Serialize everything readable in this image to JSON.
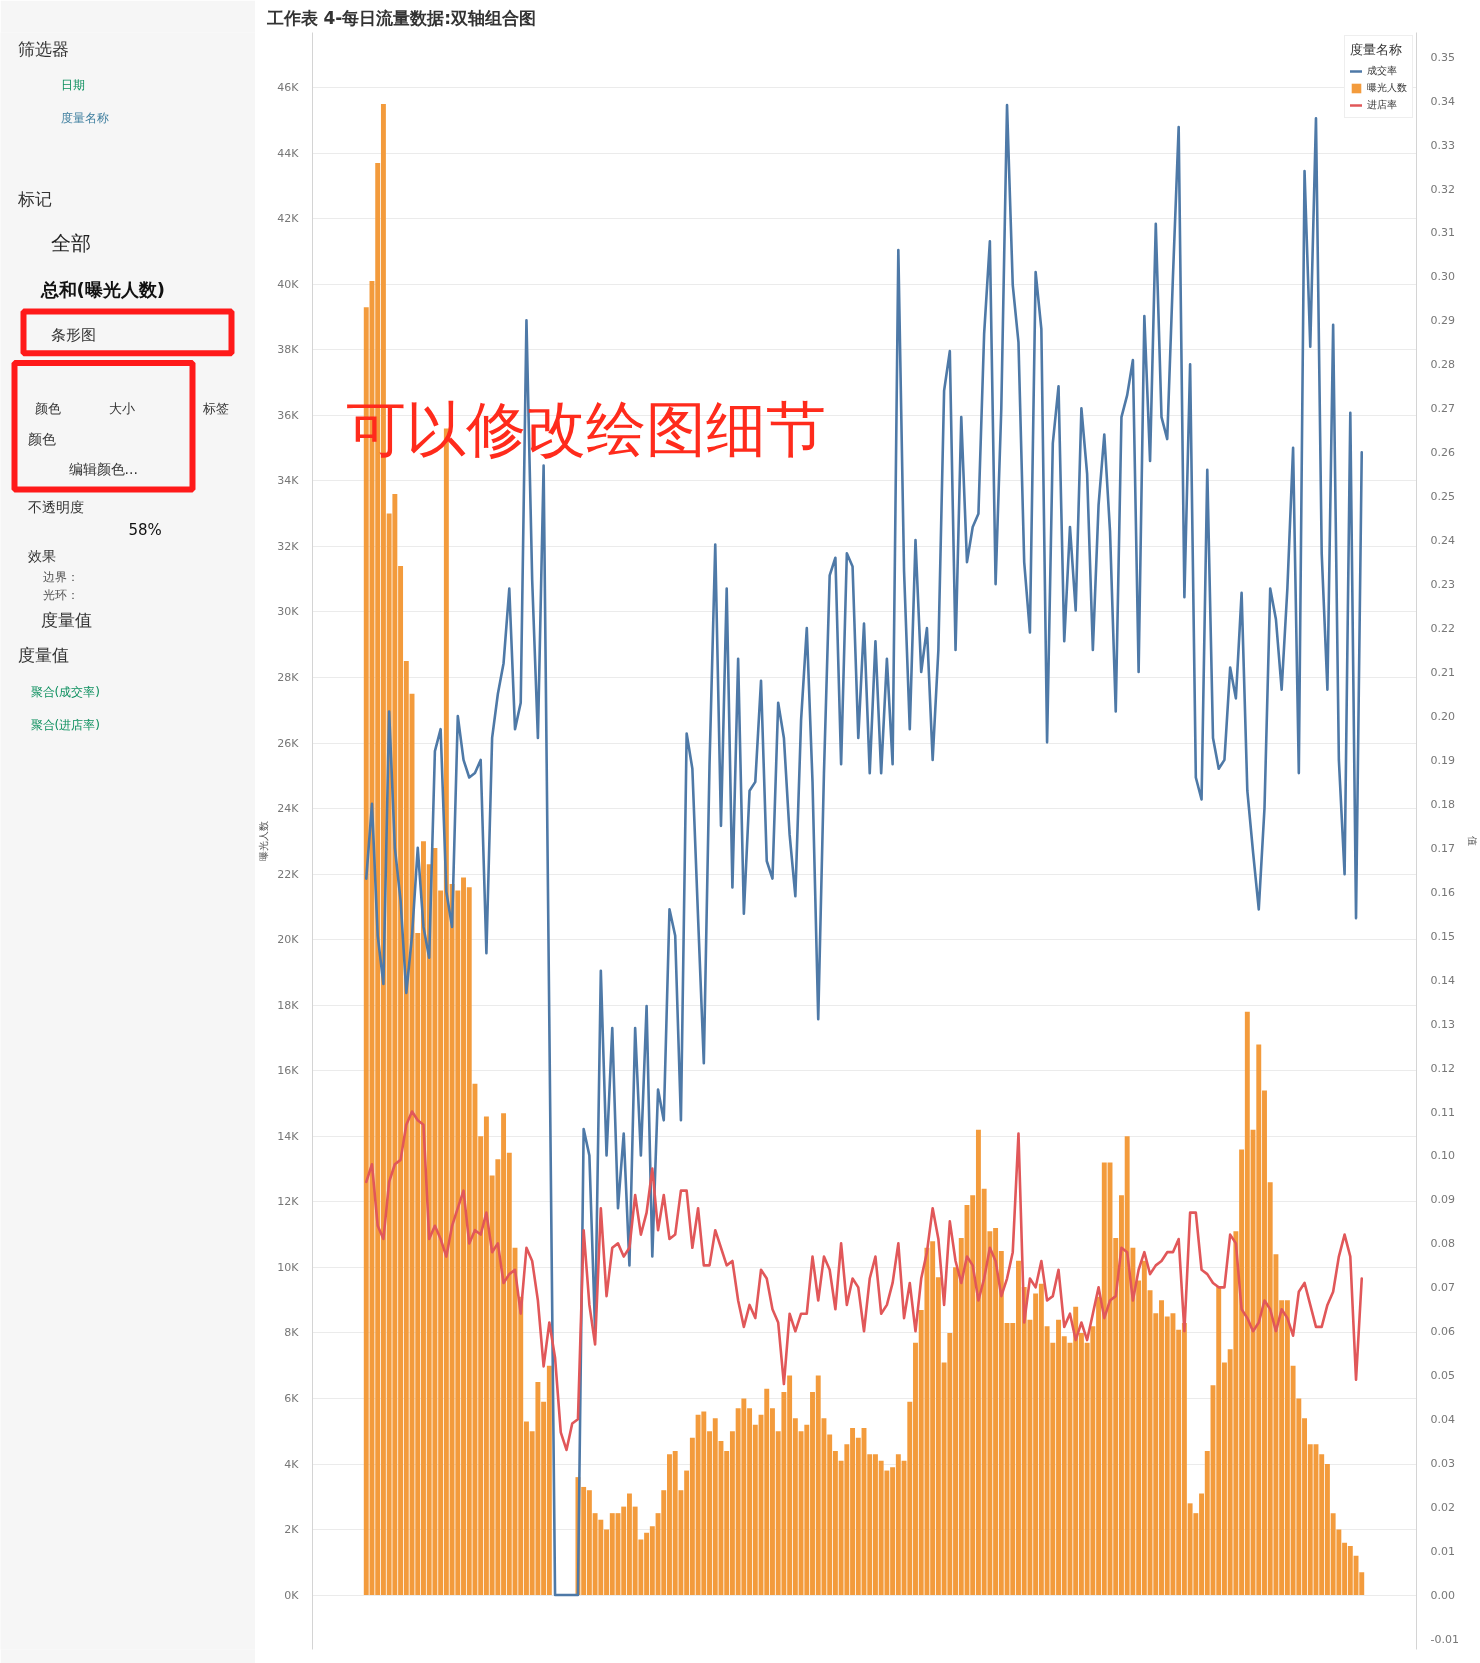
{
  "chart_data": {
    "type": "bar",
    "title": "工作表 4-每日流量数据:双轴组合图",
    "ylabel": "曝光人数",
    "y2label": "值",
    "legend_title": "度量名称",
    "categories": [
      null,
      null,
      null,
      null,
      null,
      null,
      null,
      null,
      null,
      null,
      null,
      null,
      null,
      null,
      null,
      null,
      null,
      null,
      null,
      null,
      null,
      null,
      null,
      null,
      null,
      null,
      null,
      null,
      null,
      null,
      null,
      null,
      null,
      null,
      null,
      null,
      null,
      null,
      null,
      null,
      null,
      null,
      null,
      null,
      null,
      null,
      null,
      null,
      null,
      null,
      null,
      null,
      null,
      null,
      null,
      null,
      null,
      null,
      null,
      null,
      null,
      null,
      null,
      null,
      null,
      null,
      null,
      null,
      null,
      null,
      null,
      null,
      null,
      null,
      null,
      null,
      null,
      null,
      null,
      null,
      null,
      null,
      null,
      null,
      null,
      null,
      null,
      null,
      null,
      null,
      null,
      null,
      null,
      null,
      null,
      null,
      null,
      null,
      null,
      null,
      null,
      null,
      null,
      null,
      null,
      null,
      null,
      null,
      null,
      null,
      null,
      null,
      null,
      null,
      null,
      null,
      null,
      null,
      null,
      null,
      null,
      null,
      null,
      null,
      null,
      null,
      null,
      null,
      null,
      null,
      null,
      null,
      null,
      null,
      null,
      null,
      null,
      null,
      null,
      null,
      null,
      null,
      null,
      null,
      null,
      null,
      null,
      null,
      null,
      null,
      null,
      null,
      null,
      null,
      null,
      null,
      null,
      null,
      null,
      null,
      null,
      null,
      null,
      null,
      null,
      null,
      null,
      null,
      null,
      null,
      null,
      null,
      null,
      null,
      null
    ],
    "series": [
      {
        "name": "成交率",
        "type": "line",
        "axis": "y2",
        "color": "#4e79a7",
        "values": [
          0.163,
          0.18,
          0.15,
          0.139,
          0.201,
          0.17,
          0.158,
          0.137,
          0.15,
          0.17,
          0.152,
          0.145,
          0.192,
          0.197,
          0.16,
          0.152,
          0.2,
          0.19,
          0.186,
          0.187,
          0.19,
          0.146,
          0.195,
          0.205,
          0.212,
          0.229,
          0.197,
          0.203,
          0.29,
          0.231,
          0.195,
          0.257,
          0.13,
          0,
          0,
          0,
          0,
          0,
          0.106,
          0.1,
          0.06,
          0.142,
          0.1,
          0.129,
          0.088,
          0.105,
          0.075,
          0.129,
          0.1,
          0.134,
          0.077,
          0.115,
          0.108,
          0.156,
          0.15,
          0.108,
          0.196,
          0.188,
          0.154,
          0.121,
          0.189,
          0.239,
          0.175,
          0.229,
          0.161,
          0.213,
          0.155,
          0.183,
          0.185,
          0.208,
          0.167,
          0.163,
          0.203,
          0.195,
          0.173,
          0.159,
          0.199,
          0.22,
          0.185,
          0.131,
          0.187,
          0.232,
          0.236,
          0.189,
          0.237,
          0.234,
          0.195,
          0.221,
          0.187,
          0.217,
          0.187,
          0.213,
          0.189,
          0.306,
          0.233,
          0.197,
          0.24,
          0.21,
          0.22,
          0.19,
          0.215,
          0.274,
          0.283,
          0.215,
          0.268,
          0.235,
          0.243,
          0.246,
          0.287,
          0.308,
          0.23,
          0.27,
          0.339,
          0.298,
          0.285,
          0.235,
          0.219,
          0.301,
          0.288,
          0.194,
          0.262,
          0.275,
          0.217,
          0.243,
          0.224,
          0.27,
          0.255,
          0.215,
          0.248,
          0.264,
          0.242,
          0.201,
          0.268,
          0.273,
          0.281,
          0.21,
          0.291,
          0.258,
          0.312,
          0.268,
          0.263,
          0.3,
          0.334,
          0.227,
          0.28,
          0.186,
          0.181,
          0.256,
          0.195,
          0.188,
          0.19,
          0.211,
          0.204,
          0.228,
          0.183,
          0.169,
          0.156,
          0.179,
          0.229,
          0.222,
          0.206,
          0.229,
          0.261,
          0.187,
          0.324,
          0.284,
          0.336,
          0.237,
          0.206,
          0.289,
          0.19,
          0.164,
          0.269,
          0.154,
          0.26
        ]
      },
      {
        "name": "曝光人数",
        "color": "#f39b3c",
        "values": [
          39300,
          40100,
          43700,
          45500,
          33000,
          33600,
          31400,
          28500,
          27500,
          20200,
          23000,
          22300,
          22800,
          21500,
          35600,
          21700,
          21500,
          21900,
          21600,
          15600,
          14000,
          14600,
          12800,
          13300,
          14700,
          13500,
          10600,
          9100,
          5300,
          5000,
          6500,
          5900,
          7000,
          null,
          null,
          null,
          null,
          3600,
          3300,
          3200,
          2500,
          2300,
          2000,
          2500,
          2500,
          2700,
          3100,
          2700,
          1700,
          1900,
          2100,
          2500,
          3200,
          4300,
          4400,
          3200,
          3800,
          4800,
          5500,
          5600,
          5000,
          5400,
          4700,
          4400,
          5000,
          5700,
          6000,
          5700,
          5200,
          5500,
          6300,
          5700,
          5000,
          6200,
          6700,
          5400,
          5000,
          5200,
          6200,
          6700,
          5400,
          4900,
          4400,
          4100,
          4600,
          5100,
          4800,
          5100,
          4300,
          4300,
          4100,
          3800,
          3900,
          4300,
          4100,
          5900,
          7700,
          8700,
          10600,
          10800,
          9700,
          7100,
          8000,
          10000,
          10900,
          11900,
          12200,
          14200,
          12400,
          11100,
          11200,
          10500,
          8300,
          8300,
          10200,
          9400,
          8400,
          9200,
          9500,
          8200,
          7700,
          8400,
          7900,
          7700,
          8800,
          8000,
          7700,
          8200,
          9100,
          13200,
          13200,
          10900,
          12200,
          14000,
          10600,
          9600,
          10200,
          9300,
          8600,
          9000,
          8500,
          8600,
          8100,
          8300,
          2800,
          2500,
          3100,
          4400,
          6400,
          9400,
          7100,
          7500,
          11100,
          13600,
          17800,
          14200,
          16800,
          15400,
          12600,
          10400,
          9000,
          9000,
          7000,
          6000,
          5400,
          4600,
          4600,
          4300,
          4000,
          2500,
          2000,
          1600,
          1500,
          1200,
          700
        ]
      },
      {
        "name": "进店率",
        "type": "line",
        "axis": "y2",
        "color": "#e15759",
        "values": [
          0.094,
          0.098,
          0.084,
          0.081,
          0.094,
          0.098,
          0.099,
          0.107,
          0.11,
          0.108,
          0.107,
          0.081,
          0.084,
          0.081,
          0.077,
          0.084,
          0.088,
          0.092,
          0.08,
          0.083,
          0.082,
          0.087,
          0.078,
          0.08,
          0.071,
          0.073,
          0.074,
          0.064,
          0.079,
          0.076,
          0.067,
          0.052,
          0.062,
          0.054,
          0.037,
          0.033,
          0.039,
          0.04,
          0.083,
          0.066,
          0.057,
          0.088,
          0.068,
          0.079,
          0.08,
          0.077,
          0.079,
          0.091,
          0.082,
          0.087,
          0.097,
          0.083,
          0.091,
          0.081,
          0.082,
          0.092,
          0.092,
          0.079,
          0.088,
          0.075,
          0.075,
          0.083,
          0.079,
          0.075,
          0.076,
          0.067,
          0.061,
          0.066,
          0.063,
          0.074,
          0.072,
          0.065,
          0.062,
          0.048,
          0.064,
          0.06,
          0.064,
          0.064,
          0.077,
          0.067,
          0.077,
          0.074,
          0.065,
          0.08,
          0.066,
          0.072,
          0.07,
          0.06,
          0.072,
          0.077,
          0.064,
          0.066,
          0.071,
          0.08,
          0.063,
          0.071,
          0.06,
          0.072,
          0.078,
          0.088,
          0.081,
          0.066,
          0.085,
          0.076,
          0.071,
          0.077,
          0.075,
          0.067,
          0.072,
          0.079,
          0.076,
          0.068,
          0.072,
          0.078,
          0.105,
          0.062,
          0.072,
          0.07,
          0.076,
          0.067,
          0.068,
          0.074,
          0.061,
          0.064,
          0.058,
          0.062,
          0.058,
          0.064,
          0.07,
          0.063,
          0.067,
          0.068,
          0.079,
          0.078,
          0.067,
          0.074,
          0.078,
          0.073,
          0.075,
          0.076,
          0.078,
          0.078,
          0.081,
          0.06,
          0.087,
          0.087,
          0.074,
          0.073,
          0.071,
          0.07,
          0.07,
          0.082,
          0.08,
          0.065,
          0.063,
          0.06,
          0.062,
          0.067,
          0.065,
          0.06,
          0.065,
          0.063,
          0.059,
          0.069,
          0.071,
          0.066,
          0.061,
          0.061,
          0.066,
          0.069,
          0.077,
          0.082,
          0.077,
          0.049,
          0.072
        ]
      }
    ],
    "ylim": [
      -1660,
      47680
    ],
    "yticks": [
      {
        "value": 0,
        "label": "0K"
      },
      {
        "value": 2000,
        "label": "2K"
      },
      {
        "value": 4000,
        "label": "4K"
      },
      {
        "value": 6000,
        "label": "6K"
      },
      {
        "value": 8000,
        "label": "8K"
      },
      {
        "value": 10000,
        "label": "10K"
      },
      {
        "value": 12000,
        "label": "12K"
      },
      {
        "value": 14000,
        "label": "14K"
      },
      {
        "value": 16000,
        "label": "16K"
      },
      {
        "value": 18000,
        "label": "18K"
      },
      {
        "value": 20000,
        "label": "20K"
      },
      {
        "value": 22000,
        "label": "22K"
      },
      {
        "value": 24000,
        "label": "24K"
      },
      {
        "value": 26000,
        "label": "26K"
      },
      {
        "value": 28000,
        "label": "28K"
      },
      {
        "value": 30000,
        "label": "30K"
      },
      {
        "value": 32000,
        "label": "32K"
      },
      {
        "value": 34000,
        "label": "34K"
      },
      {
        "value": 36000,
        "label": "36K"
      },
      {
        "value": 38000,
        "label": "38K"
      },
      {
        "value": 40000,
        "label": "40K"
      },
      {
        "value": 42000,
        "label": "42K"
      },
      {
        "value": 44000,
        "label": "44K"
      },
      {
        "value": 46000,
        "label": "46K"
      }
    ],
    "y2lim": [
      -0.0124,
      0.3555
    ],
    "y2ticks": [
      {
        "value": -0.01,
        "label": "-0.01"
      },
      {
        "value": 0,
        "label": "0.00"
      },
      {
        "value": 0.01,
        "label": "0.01"
      },
      {
        "value": 0.02,
        "label": "0.02"
      },
      {
        "value": 0.03,
        "label": "0.03"
      },
      {
        "value": 0.04,
        "label": "0.04"
      },
      {
        "value": 0.05,
        "label": "0.05"
      },
      {
        "value": 0.06,
        "label": "0.06"
      },
      {
        "value": 0.07,
        "label": "0.07"
      },
      {
        "value": 0.08,
        "label": "0.08"
      },
      {
        "value": 0.09,
        "label": "0.09"
      },
      {
        "value": 0.1,
        "label": "0.10"
      },
      {
        "value": 0.11,
        "label": "0.11"
      },
      {
        "value": 0.12,
        "label": "0.12"
      },
      {
        "value": 0.13,
        "label": "0.13"
      },
      {
        "value": 0.14,
        "label": "0.14"
      },
      {
        "value": 0.15,
        "label": "0.15"
      },
      {
        "value": 0.16,
        "label": "0.16"
      },
      {
        "value": 0.17,
        "label": "0.17"
      },
      {
        "value": 0.18,
        "label": "0.18"
      },
      {
        "value": 0.19,
        "label": "0.19"
      },
      {
        "value": 0.2,
        "label": "0.20"
      },
      {
        "value": 0.21,
        "label": "0.21"
      },
      {
        "value": 0.22,
        "label": "0.22"
      },
      {
        "value": 0.23,
        "label": "0.23"
      },
      {
        "value": 0.24,
        "label": "0.24"
      },
      {
        "value": 0.25,
        "label": "0.25"
      },
      {
        "value": 0.26,
        "label": "0.26"
      },
      {
        "value": 0.27,
        "label": "0.27"
      },
      {
        "value": 0.28,
        "label": "0.28"
      },
      {
        "value": 0.29,
        "label": "0.29"
      },
      {
        "value": 0.3,
        "label": "0.30"
      },
      {
        "value": 0.31,
        "label": "0.31"
      },
      {
        "value": 0.32,
        "label": "0.32"
      },
      {
        "value": 0.33,
        "label": "0.33"
      },
      {
        "value": 0.34,
        "label": "0.34"
      },
      {
        "value": 0.35,
        "label": "0.35"
      }
    ],
    "grid": "y",
    "legend": "top right",
    "tick_labels": "y",
    "line_style": "solid",
    "annotations": [
      "筛选器",
      "日期",
      "度量名称",
      "标记",
      "全部",
      "总和(曝光人数)",
      "条形图",
      "颜色",
      "大小",
      "标签",
      "颜色",
      "编辑颜色...",
      "不透明度",
      "58%",
      "效果",
      "边界：",
      "光环：",
      "度量值",
      "度量值",
      "聚合(成交率)",
      "聚合(进店率)",
      "可以修改绘图细节"
    ]
  }
}
